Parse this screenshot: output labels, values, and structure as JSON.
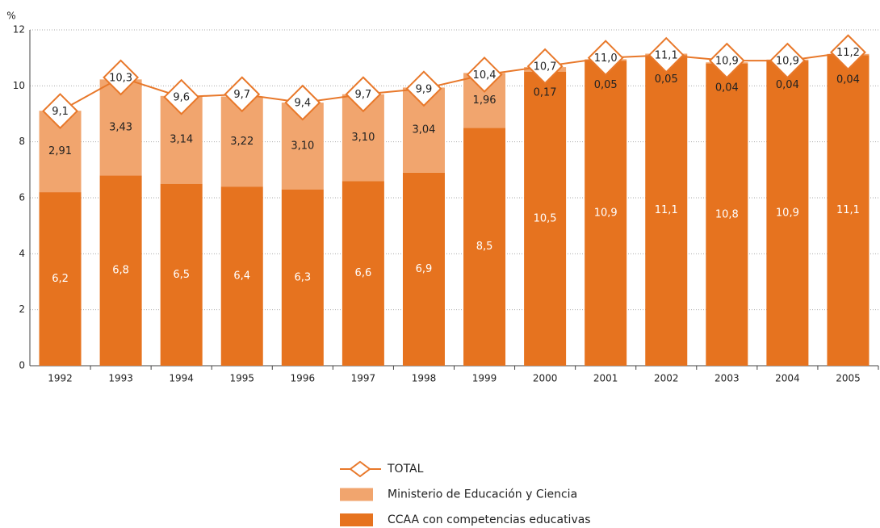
{
  "chart_data": {
    "type": "stacked-bar-line",
    "y_label": "%",
    "categories": [
      "1992",
      "1993",
      "1994",
      "1995",
      "1996",
      "1997",
      "1998",
      "1999",
      "2000",
      "2001",
      "2002",
      "2003",
      "2004",
      "2005"
    ],
    "ylim": [
      0,
      12
    ],
    "yticks": [
      0,
      2,
      4,
      6,
      8,
      10,
      12
    ],
    "grid": true,
    "series": [
      {
        "name": "CCAA con competencias educativas",
        "type": "bar",
        "color": "#e6731f",
        "values": [
          6.2,
          6.8,
          6.5,
          6.4,
          6.3,
          6.6,
          6.9,
          8.5,
          10.5,
          10.9,
          11.1,
          10.8,
          10.9,
          11.1
        ],
        "value_labels": [
          "6,2",
          "6,8",
          "6,5",
          "6,4",
          "6,3",
          "6,6",
          "6,9",
          "8,5",
          "10,5",
          "10,9",
          "11,1",
          "10,8",
          "10,9",
          "11,1"
        ]
      },
      {
        "name": "Ministerio de Educación y Ciencia",
        "type": "bar",
        "color": "#f1a56e",
        "values": [
          2.91,
          3.43,
          3.14,
          3.22,
          3.1,
          3.1,
          3.04,
          1.96,
          0.17,
          0.05,
          0.05,
          0.04,
          0.04,
          0.04
        ],
        "value_labels": [
          "2,91",
          "3,43",
          "3,14",
          "3,22",
          "3,10",
          "3,10",
          "3,04",
          "1,96",
          "0,17",
          "0,05",
          "0,05",
          "0,04",
          "0,04",
          "0,04"
        ]
      },
      {
        "name": "TOTAL",
        "type": "line",
        "color": "#e8782a",
        "values": [
          9.1,
          10.3,
          9.6,
          9.7,
          9.4,
          9.7,
          9.9,
          10.4,
          10.7,
          11.0,
          11.1,
          10.9,
          10.9,
          11.2
        ],
        "value_labels": [
          "9,1",
          "10,3",
          "9,6",
          "9,7",
          "9,4",
          "9,7",
          "9,9",
          "10,4",
          "10,7",
          "11,0",
          "11,1",
          "10,9",
          "10,9",
          "11,2"
        ]
      }
    ]
  }
}
